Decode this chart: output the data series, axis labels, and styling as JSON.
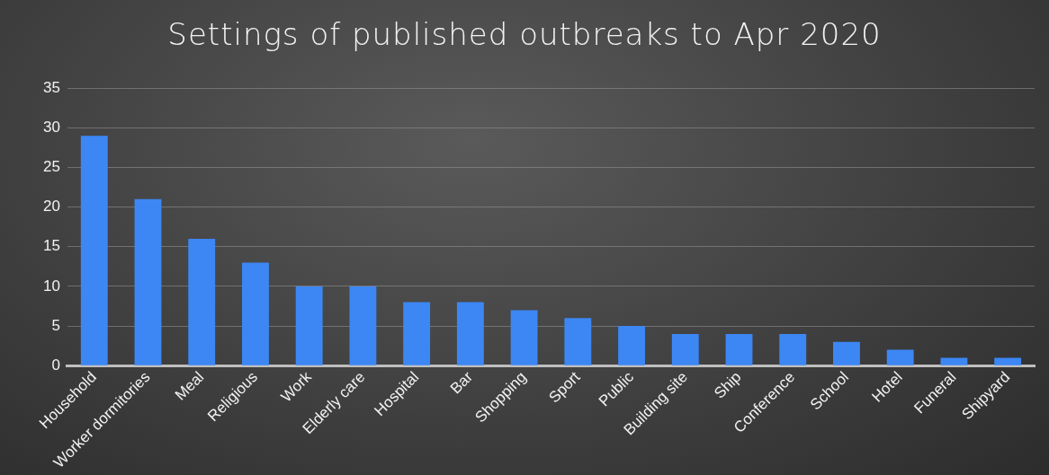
{
  "chart_data": {
    "type": "bar",
    "title": "Settings of published outbreaks to Apr 2020",
    "categories": [
      "Household",
      "Worker dormitories",
      "Meal",
      "Religious",
      "Work",
      "Elderly care",
      "Hospital",
      "Bar",
      "Shopping",
      "Sport",
      "Public",
      "Building site",
      "Ship",
      "Conference",
      "School",
      "Hotel",
      "Funeral",
      "Shipyard"
    ],
    "values": [
      29,
      21,
      16,
      13,
      10,
      10,
      8,
      8,
      7,
      6,
      5,
      4,
      4,
      4,
      3,
      2,
      1,
      1
    ],
    "color": "#3d87f5",
    "ylim": [
      0,
      35
    ],
    "yticks": [
      0,
      5,
      10,
      15,
      20,
      25,
      30,
      35
    ],
    "grid": "y",
    "legend": false
  }
}
